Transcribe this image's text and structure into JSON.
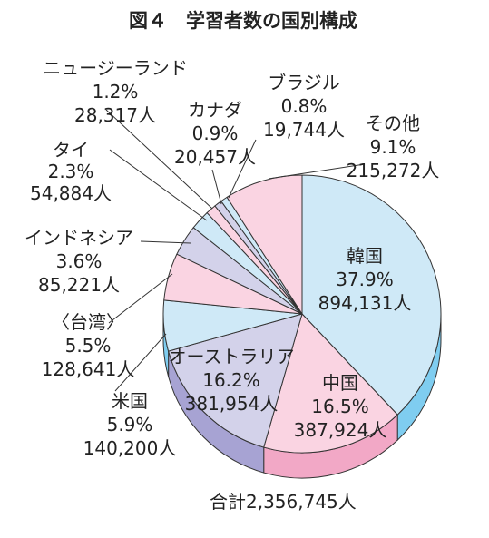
{
  "title": "図４　学習者数の国別構成",
  "total_label": "合計2,356,745人",
  "chart_data": {
    "type": "pie",
    "title": "図４　学習者数の国別構成",
    "total": "合計2,356,745人",
    "slices": [
      {
        "name": "韓国",
        "percent": 37.9,
        "value": 894131,
        "percent_label": "37.9%",
        "value_label": "894,131人",
        "color": "#cfe9f7",
        "side_color": "#7fcdf0"
      },
      {
        "name": "中国",
        "percent": 16.5,
        "value": 387924,
        "percent_label": "16.5%",
        "value_label": "387,924人",
        "color": "#fad4e2",
        "side_color": "#f2a8c6"
      },
      {
        "name": "オーストラリア",
        "percent": 16.2,
        "value": 381954,
        "percent_label": "16.2%",
        "value_label": "381,954人",
        "color": "#d3d2ea",
        "side_color": "#a7a3d3"
      },
      {
        "name": "米国",
        "percent": 5.9,
        "value": 140200,
        "percent_label": "5.9%",
        "value_label": "140,200人",
        "color": "#cfe9f7",
        "side_color": "#7fcdf0"
      },
      {
        "name": "〈台湾〉",
        "percent": 5.5,
        "value": 128641,
        "percent_label": "5.5%",
        "value_label": "128,641人",
        "color": "#fad4e2",
        "side_color": "#f2a8c6"
      },
      {
        "name": "インドネシア",
        "percent": 3.6,
        "value": 85221,
        "percent_label": "3.6%",
        "value_label": "85,221人",
        "color": "#d3d2ea",
        "side_color": "#a7a3d3"
      },
      {
        "name": "タイ",
        "percent": 2.3,
        "value": 54884,
        "percent_label": "2.3%",
        "value_label": "54,884人",
        "color": "#cfe9f7",
        "side_color": "#7fcdf0"
      },
      {
        "name": "ニュージーランド",
        "percent": 1.2,
        "value": 28317,
        "percent_label": "1.2%",
        "value_label": "28,317人",
        "color": "#fad4e2",
        "side_color": "#f2a8c6"
      },
      {
        "name": "カナダ",
        "percent": 0.9,
        "value": 20457,
        "percent_label": "0.9%",
        "value_label": "20,457人",
        "color": "#d3d2ea",
        "side_color": "#a7a3d3"
      },
      {
        "name": "ブラジル",
        "percent": 0.8,
        "value": 19744,
        "percent_label": "0.8%",
        "value_label": "19,744人",
        "color": "#cfe9f7",
        "side_color": "#7fcdf0"
      },
      {
        "name": "その他",
        "percent": 9.1,
        "value": 215272,
        "percent_label": "9.1%",
        "value_label": "215,272人",
        "color": "#fad4e2",
        "side_color": "#f2a8c6"
      }
    ]
  }
}
